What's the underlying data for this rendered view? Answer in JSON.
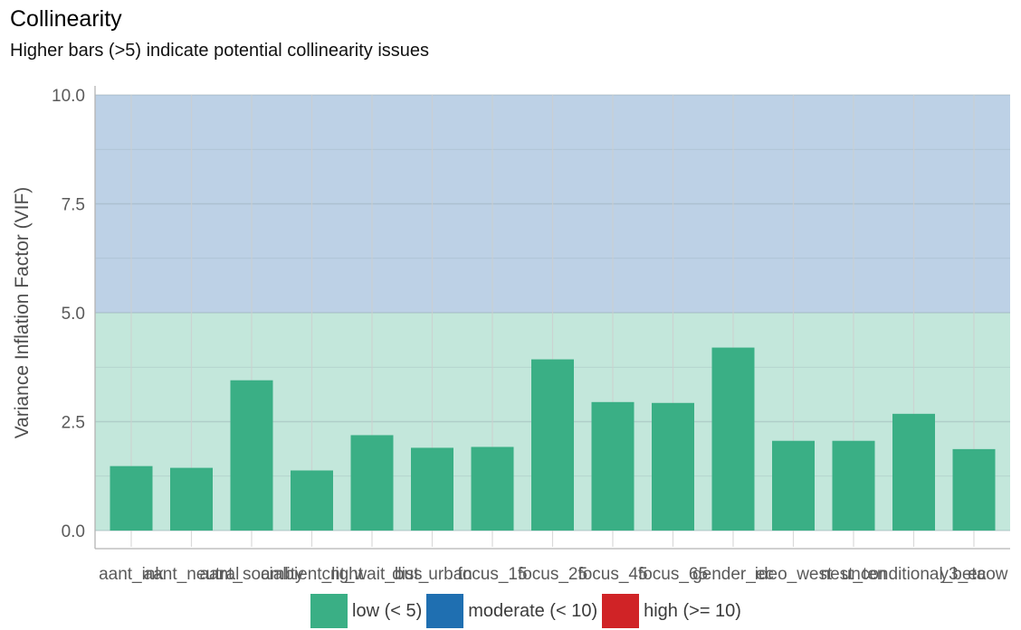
{
  "colors": {
    "low": "#3aaf85",
    "moderate": "#1f6fb1",
    "high": "#d02326",
    "band_low": "#c3e7db",
    "band_moderate": "#bdd1e6"
  },
  "chart_data": {
    "type": "bar",
    "title": "Collinearity",
    "subtitle": "Higher bars (>5) indicate potential collinearity issues",
    "ylabel": "Variance Inflation Factor (VIF)",
    "xlabel": "",
    "ylim": [
      0,
      10
    ],
    "yticks": [
      "0.0",
      "2.5",
      "5.0",
      "7.5",
      "10.0"
    ],
    "ytick_values": [
      0,
      2.5,
      5,
      7.5,
      10
    ],
    "categories": [
      "aant_ink",
      "aant_neutral",
      "aant_sociality",
      "ambient_light",
      "cnt_wait_bus",
      "dist_urban",
      "focus_15",
      "focus_25",
      "focus_45",
      "focus_65",
      "gender_ec",
      "ideo_west",
      "nest_ten",
      "unconditional_beta",
      "y3_ecow"
    ],
    "values": [
      1.48,
      1.44,
      3.45,
      1.38,
      2.19,
      1.9,
      1.92,
      3.93,
      2.95,
      2.93,
      4.2,
      2.06,
      2.06,
      2.68,
      1.87
    ],
    "bar_color": "#3aaf85",
    "bands": [
      {
        "from": 0,
        "to": 5,
        "color": "#c3e7db"
      },
      {
        "from": 5,
        "to": 10,
        "color": "#bdd1e6"
      }
    ],
    "grid": true,
    "legend_position": "bottom",
    "legend": [
      {
        "label": "low (< 5)",
        "color": "#3aaf85"
      },
      {
        "label": "moderate (< 10)",
        "color": "#1f6fb1"
      },
      {
        "label": "high (>= 10)",
        "color": "#d02326"
      }
    ]
  }
}
